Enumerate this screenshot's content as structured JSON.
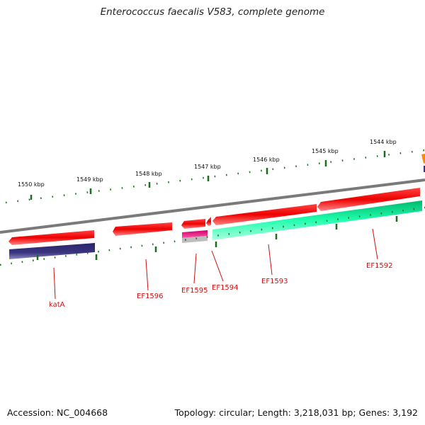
{
  "title": "Enterococcus faecalis V583, complete genome",
  "footer": {
    "accession": "Accession: NC_004668",
    "topology": "Topology: circular; Length: 3,218,031 bp; Genes: 3,192"
  },
  "scale_labels": [
    "1550 kbp",
    "1549 kbp",
    "1548 kbp",
    "1547 kbp",
    "1546 kbp",
    "1545 kbp",
    "1544 kbp"
  ],
  "gene_labels": [
    "katA",
    "EF1596",
    "EF1595",
    "EF1594",
    "EF1593",
    "EF1592"
  ],
  "colors": {
    "backbone": "#7a7a7a",
    "gene_red": "#ee1111",
    "orf_navy": "#3b3580",
    "orf_magenta": "#ee1188",
    "orf_teal": "#11e8a0",
    "orf_grey": "#bbbbbb",
    "orf_orange": "#ff8800",
    "tick_green": "#116611",
    "label_red": "#cc1111"
  }
}
